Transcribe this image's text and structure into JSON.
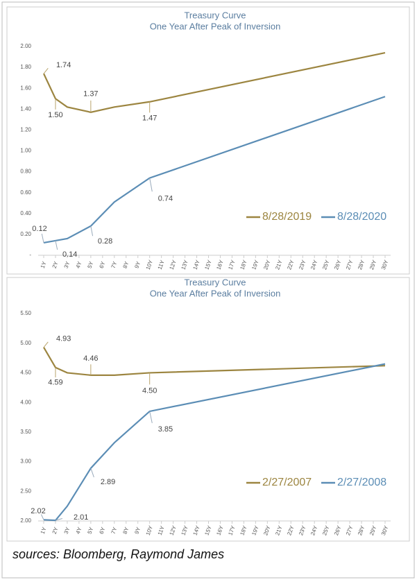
{
  "chart_data": [
    {
      "type": "line",
      "title": "Treasury Curve",
      "subtitle": "One Year After Peak of Inversion",
      "x": [
        1,
        2,
        3,
        5,
        7,
        10,
        30
      ],
      "xlim": [
        1,
        30
      ],
      "xticks": [
        {
          "value": 1,
          "label": "1Y"
        },
        {
          "value": 2,
          "label": "2Y"
        },
        {
          "value": 3,
          "label": "3Y"
        },
        {
          "value": 4,
          "label": "4Y"
        },
        {
          "value": 5,
          "label": "5Y"
        },
        {
          "value": 6,
          "label": "6Y"
        },
        {
          "value": 7,
          "label": "7Y"
        },
        {
          "value": 8,
          "label": "8Y"
        },
        {
          "value": 9,
          "label": "9Y"
        },
        {
          "value": 10,
          "label": "10Y"
        },
        {
          "value": 11,
          "label": "11Y"
        },
        {
          "value": 12,
          "label": "12Y"
        },
        {
          "value": 13,
          "label": "13Y"
        },
        {
          "value": 14,
          "label": "14Y"
        },
        {
          "value": 15,
          "label": "15Y"
        },
        {
          "value": 16,
          "label": "16Y"
        },
        {
          "value": 17,
          "label": "17Y"
        },
        {
          "value": 18,
          "label": "18Y"
        },
        {
          "value": 19,
          "label": "19Y"
        },
        {
          "value": 20,
          "label": "20Y"
        },
        {
          "value": 21,
          "label": "21Y"
        },
        {
          "value": 22,
          "label": "22Y"
        },
        {
          "value": 23,
          "label": "23Y"
        },
        {
          "value": 24,
          "label": "24Y"
        },
        {
          "value": 25,
          "label": "25Y"
        },
        {
          "value": 26,
          "label": "26Y"
        },
        {
          "value": 27,
          "label": "27Y"
        },
        {
          "value": 28,
          "label": "28Y"
        },
        {
          "value": 29,
          "label": "29Y"
        },
        {
          "value": 30,
          "label": "30Y"
        }
      ],
      "ylim": [
        0,
        2
      ],
      "yticks": [
        {
          "value": 0,
          "label": "-"
        },
        {
          "value": 0.2,
          "label": "0.20"
        },
        {
          "value": 0.4,
          "label": "0.40"
        },
        {
          "value": 0.6,
          "label": "0.60"
        },
        {
          "value": 0.8,
          "label": "0.80"
        },
        {
          "value": 1,
          "label": "1.00"
        },
        {
          "value": 1.2,
          "label": "1.20"
        },
        {
          "value": 1.4,
          "label": "1.40"
        },
        {
          "value": 1.6,
          "label": "1.60"
        },
        {
          "value": 1.8,
          "label": "1.80"
        },
        {
          "value": 2,
          "label": "2.00"
        }
      ],
      "legend": "lower right",
      "series": [
        {
          "name": "8/28/2019",
          "color": "#9c8540",
          "values": [
            1.74,
            1.5,
            1.42,
            1.37,
            1.42,
            1.47,
            1.94
          ],
          "value_labels": [
            "1.74",
            "1.50",
            null,
            "1.37",
            null,
            "1.47",
            null
          ]
        },
        {
          "name": "8/28/2020",
          "color": "#5b8db5",
          "values": [
            0.12,
            0.14,
            0.16,
            0.28,
            0.51,
            0.74,
            1.52
          ],
          "value_labels": [
            "0.12",
            "0.14",
            null,
            "0.28",
            null,
            "0.74",
            null
          ]
        }
      ]
    },
    {
      "type": "line",
      "title": "Treasury Curve",
      "subtitle": "One Year After Peak of Inversion",
      "x": [
        1,
        2,
        3,
        5,
        7,
        10,
        30
      ],
      "xlim": [
        1,
        30
      ],
      "xticks": [
        {
          "value": 1,
          "label": "1Y"
        },
        {
          "value": 2,
          "label": "2Y"
        },
        {
          "value": 3,
          "label": "3Y"
        },
        {
          "value": 4,
          "label": "4Y"
        },
        {
          "value": 5,
          "label": "5Y"
        },
        {
          "value": 6,
          "label": "6Y"
        },
        {
          "value": 7,
          "label": "7Y"
        },
        {
          "value": 8,
          "label": "8Y"
        },
        {
          "value": 9,
          "label": "9Y"
        },
        {
          "value": 10,
          "label": "10Y"
        },
        {
          "value": 11,
          "label": "11Y"
        },
        {
          "value": 12,
          "label": "12Y"
        },
        {
          "value": 13,
          "label": "13Y"
        },
        {
          "value": 14,
          "label": "14Y"
        },
        {
          "value": 15,
          "label": "15Y"
        },
        {
          "value": 16,
          "label": "16Y"
        },
        {
          "value": 17,
          "label": "17Y"
        },
        {
          "value": 18,
          "label": "18Y"
        },
        {
          "value": 19,
          "label": "19Y"
        },
        {
          "value": 20,
          "label": "20Y"
        },
        {
          "value": 21,
          "label": "21Y"
        },
        {
          "value": 22,
          "label": "22Y"
        },
        {
          "value": 23,
          "label": "23Y"
        },
        {
          "value": 24,
          "label": "24Y"
        },
        {
          "value": 25,
          "label": "25Y"
        },
        {
          "value": 26,
          "label": "26Y"
        },
        {
          "value": 27,
          "label": "27Y"
        },
        {
          "value": 28,
          "label": "28Y"
        },
        {
          "value": 29,
          "label": "29Y"
        },
        {
          "value": 30,
          "label": "30Y"
        }
      ],
      "ylim": [
        2,
        5.5
      ],
      "yticks": [
        {
          "value": 2,
          "label": "2.00"
        },
        {
          "value": 2.5,
          "label": "2.50"
        },
        {
          "value": 3,
          "label": "3.00"
        },
        {
          "value": 3.5,
          "label": "3.50"
        },
        {
          "value": 4,
          "label": "4.00"
        },
        {
          "value": 4.5,
          "label": "4.50"
        },
        {
          "value": 5,
          "label": "5.00"
        },
        {
          "value": 5.5,
          "label": "5.50"
        }
      ],
      "legend": "lower right",
      "series": [
        {
          "name": "2/27/2007",
          "color": "#9c8540",
          "values": [
            4.93,
            4.59,
            4.5,
            4.46,
            4.46,
            4.5,
            4.62
          ],
          "value_labels": [
            "4.93",
            "4.59",
            null,
            "4.46",
            null,
            "4.50",
            null
          ]
        },
        {
          "name": "2/27/2008",
          "color": "#5b8db5",
          "values": [
            2.02,
            2.01,
            2.25,
            2.89,
            3.32,
            3.85,
            4.65
          ],
          "value_labels": [
            "2.02",
            "2.01",
            null,
            "2.89",
            null,
            "3.85",
            null
          ]
        }
      ]
    }
  ],
  "source": "sources: Bloomberg, Raymond James"
}
